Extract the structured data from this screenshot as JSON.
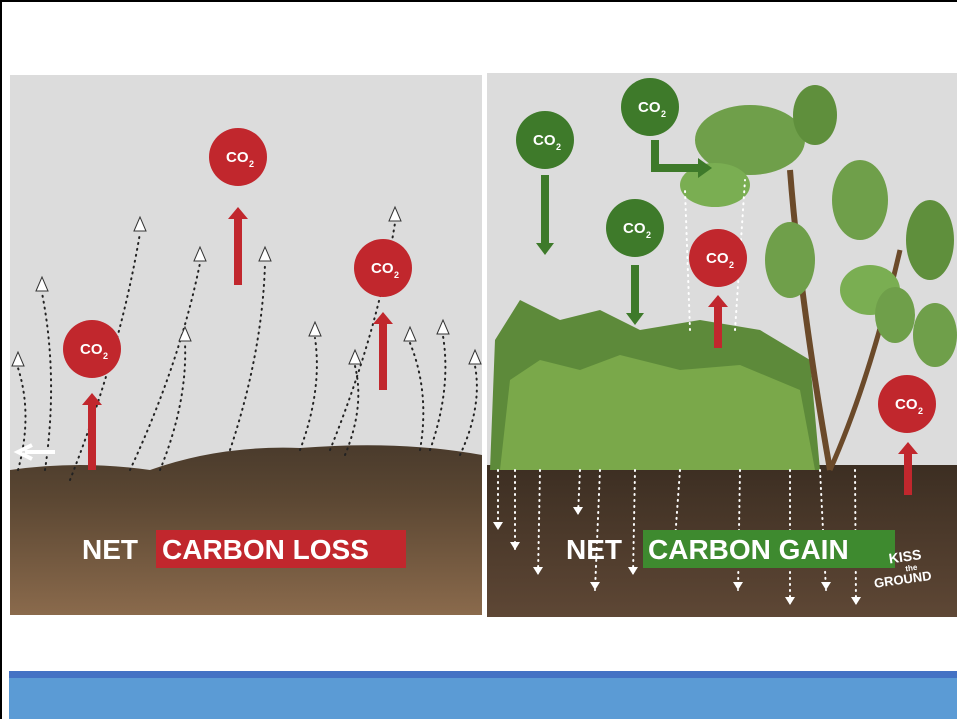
{
  "left_panel": {
    "label_plain": "NET",
    "label_highlight": "CARBON LOSS"
  },
  "right_panel": {
    "label_plain": "NET",
    "label_highlight": "CARBON GAIN"
  },
  "co2": {
    "text": "CO",
    "subscript": "2"
  },
  "logo": {
    "line1": "KISS",
    "line2": "the",
    "line3": "GROUND"
  }
}
